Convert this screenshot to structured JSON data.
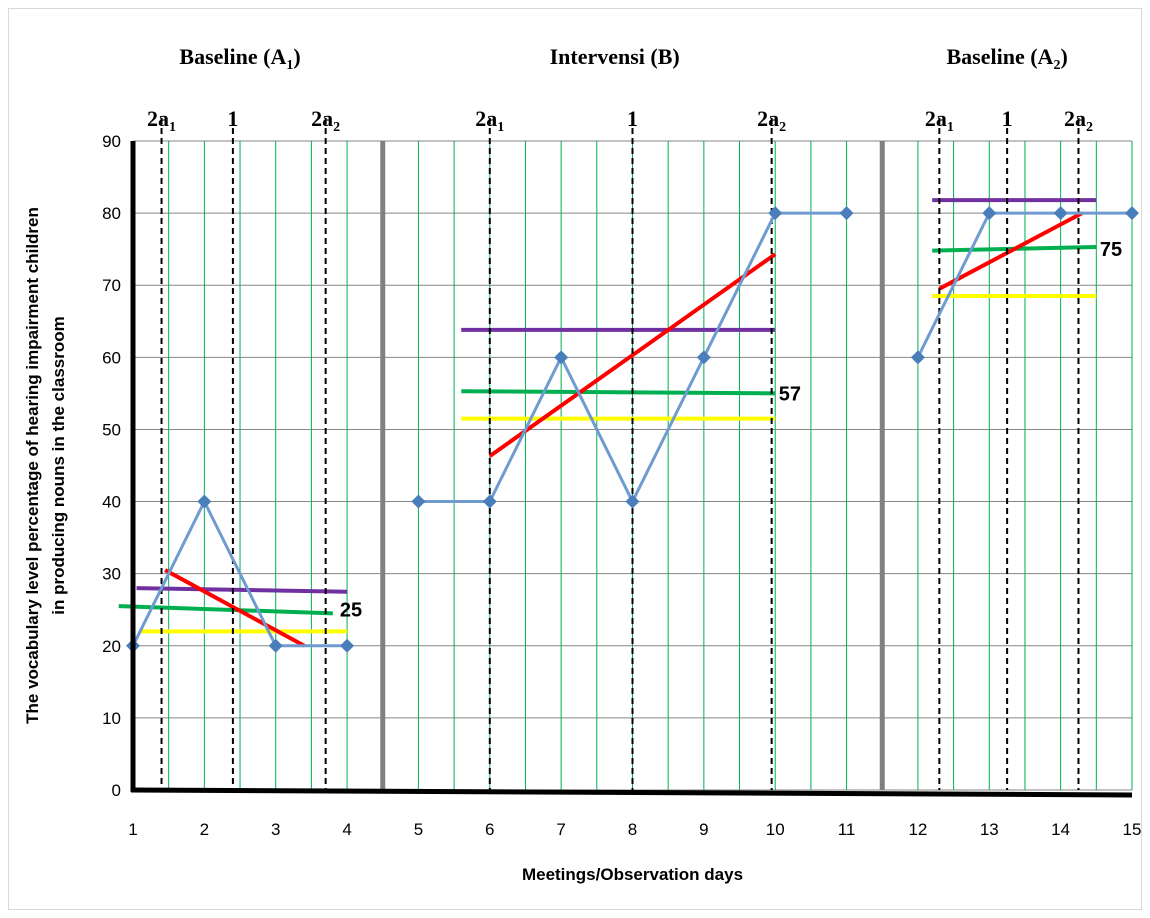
{
  "chart_data": {
    "type": "line",
    "xlabel": "Meetings/Observation days",
    "ylabel_lines": [
      "The vocabulary level percentage of hearing impairment children",
      "in producing nouns in the classroom"
    ],
    "xlim": [
      1,
      15
    ],
    "ylim": [
      0,
      90
    ],
    "x_ticks": [
      1,
      2,
      3,
      4,
      5,
      6,
      7,
      8,
      9,
      10,
      11,
      12,
      13,
      14,
      15
    ],
    "y_ticks": [
      0,
      10,
      20,
      30,
      40,
      50,
      60,
      70,
      80,
      90
    ],
    "grid": true,
    "phase_separators_x": [
      4.5,
      11.5
    ],
    "phases": [
      {
        "name": "Baseline (A",
        "sub": "1",
        "close": ")",
        "center_x": 2.5
      },
      {
        "name": "Intervensi (B)",
        "sub": "",
        "close": "",
        "center_x": 7.75
      },
      {
        "name": "Baseline (A",
        "sub": "2",
        "close": ")",
        "center_x": 13.25
      }
    ],
    "series": [
      {
        "color": "#4a7ebb",
        "points": [
          [
            1,
            20
          ],
          [
            2,
            40
          ],
          [
            3,
            20
          ],
          [
            4,
            20
          ],
          [
            5,
            40
          ],
          [
            6,
            40
          ],
          [
            7,
            60
          ],
          [
            8,
            40
          ],
          [
            9,
            60
          ],
          [
            10,
            80
          ],
          [
            11,
            80
          ],
          [
            12,
            60
          ],
          [
            13,
            80
          ],
          [
            14,
            80
          ],
          [
            15,
            80
          ]
        ]
      }
    ],
    "segment_breaks_after_x": [
      4,
      11
    ],
    "quartile_markers": [
      {
        "x": 1.4,
        "label": "2a",
        "sub": "1"
      },
      {
        "x": 2.4,
        "label": "1",
        "sub": ""
      },
      {
        "x": 3.7,
        "label": "2a",
        "sub": "2"
      },
      {
        "x": 6.0,
        "label": "2a",
        "sub": "1"
      },
      {
        "x": 8.0,
        "label": "1",
        "sub": ""
      },
      {
        "x": 9.95,
        "label": "2a",
        "sub": "2"
      },
      {
        "x": 12.3,
        "label": "2a",
        "sub": "1"
      },
      {
        "x": 13.25,
        "label": "1",
        "sub": ""
      },
      {
        "x": 14.25,
        "label": "2a",
        "sub": "2"
      }
    ],
    "reference_lines": [
      {
        "color": "#7030a0",
        "x1": 1.05,
        "y1": 28,
        "x2": 4.0,
        "y2": 27.5
      },
      {
        "color": "#00b050",
        "x1": 0.8,
        "y1": 25.5,
        "x2": 3.8,
        "y2": 24.5
      },
      {
        "color": "#ffff00",
        "x1": 1.1,
        "y1": 22,
        "x2": 4.0,
        "y2": 22
      },
      {
        "color": "#ff0000",
        "x1": 1.45,
        "y1": 30.5,
        "x2": 3.4,
        "y2": 20
      },
      {
        "color": "#7030a0",
        "x1": 5.6,
        "y1": 63.8,
        "x2": 10.0,
        "y2": 63.8
      },
      {
        "color": "#00b050",
        "x1": 5.6,
        "y1": 55.3,
        "x2": 10.0,
        "y2": 55.0
      },
      {
        "color": "#ffff00",
        "x1": 5.6,
        "y1": 51.5,
        "x2": 10.0,
        "y2": 51.5
      },
      {
        "color": "#ff0000",
        "x1": 6.0,
        "y1": 46.3,
        "x2": 10.0,
        "y2": 74.3
      },
      {
        "color": "#7030a0",
        "x1": 12.2,
        "y1": 81.8,
        "x2": 14.5,
        "y2": 81.8
      },
      {
        "color": "#00b050",
        "x1": 12.2,
        "y1": 74.8,
        "x2": 14.5,
        "y2": 75.3
      },
      {
        "color": "#ffff00",
        "x1": 12.2,
        "y1": 68.5,
        "x2": 14.5,
        "y2": 68.5
      },
      {
        "color": "#ff0000",
        "x1": 12.3,
        "y1": 69.5,
        "x2": 14.3,
        "y2": 80
      }
    ],
    "value_labels": [
      {
        "text": "25",
        "x": 3.9,
        "y": 25
      },
      {
        "text": "57",
        "x": 10.05,
        "y": 55
      },
      {
        "text": "75",
        "x": 14.55,
        "y": 75
      }
    ]
  }
}
